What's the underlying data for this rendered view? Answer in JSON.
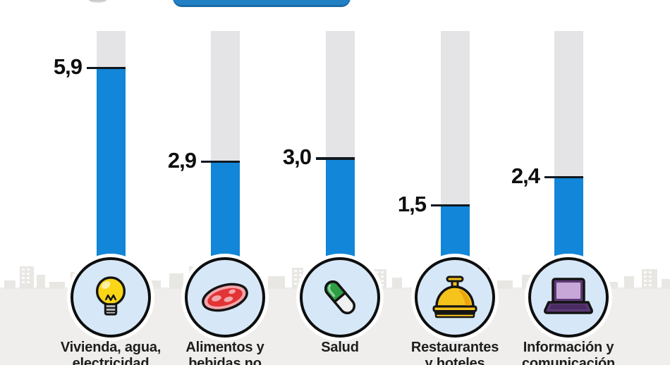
{
  "header": {
    "pill_color": "#2281c4"
  },
  "chart_data": {
    "type": "bar",
    "title": "",
    "categories": [
      "Vivienda, agua, electricidad",
      "Alimentos y bebidas no",
      "Salud",
      "Restaurantes y hoteles",
      "Información y comunicación"
    ],
    "category_lines": [
      [
        "Vivienda, agua,",
        "electricidad"
      ],
      [
        "Alimentos y",
        "bebidas no"
      ],
      [
        "Salud",
        ""
      ],
      [
        "Restaurantes",
        "y hoteles"
      ],
      [
        "Información y",
        "comunicación"
      ]
    ],
    "values": [
      5.9,
      2.9,
      3.0,
      1.5,
      2.4
    ],
    "value_labels": [
      "5,9",
      "2,9",
      "3,0",
      "1,5",
      "2,4"
    ],
    "decimal_separator": ",",
    "ylim": [
      0,
      7.1
    ],
    "grid": false,
    "legend": false,
    "icons": [
      "lightbulb-icon",
      "meat-icon",
      "pill-icon",
      "service-bell-icon",
      "laptop-icon"
    ],
    "bar_color": "#1286d8",
    "track_color": "#e4e4e6",
    "tick_color": "#101820",
    "icon_circle_bg": "#d6e8f8",
    "ground_color": "#efeeec"
  }
}
